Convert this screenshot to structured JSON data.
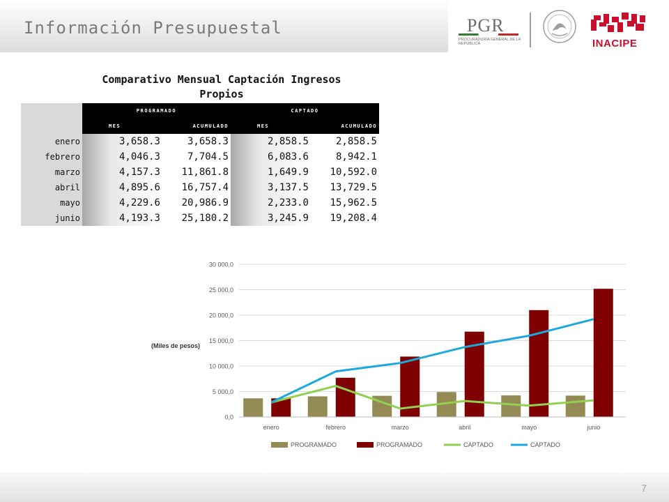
{
  "header": {
    "title": "Información Presupuestal"
  },
  "logos": {
    "pgr": "PGR",
    "pgr_subtitle": "PROCURADURÍA GENERAL DE LA REPÚBLICA",
    "inacipe": "INACIPE"
  },
  "table": {
    "title_line1": "Comparativo Mensual Captación Ingresos",
    "title_line2": "Propios",
    "group_headers": [
      "PROGRAMADO",
      "CAPTADO"
    ],
    "sub_headers": [
      "MES",
      "ACUMULADO",
      "MES",
      "ACUMULADO"
    ],
    "rows": [
      {
        "month": "enero",
        "prog_mes": "3,658.3",
        "prog_acum": "3,658.3",
        "capt_mes": "2,858.5",
        "capt_acum": "2,858.5"
      },
      {
        "month": "febrero",
        "prog_mes": "4,046.3",
        "prog_acum": "7,704.5",
        "capt_mes": "6,083.6",
        "capt_acum": "8,942.1"
      },
      {
        "month": "marzo",
        "prog_mes": "4,157.3",
        "prog_acum": "11,861.8",
        "capt_mes": "1,649.9",
        "capt_acum": "10,592.0"
      },
      {
        "month": "abril",
        "prog_mes": "4,895.6",
        "prog_acum": "16,757.4",
        "capt_mes": "3,137.5",
        "capt_acum": "13,729.5"
      },
      {
        "month": "mayo",
        "prog_mes": "4,229.6",
        "prog_acum": "20,986.9",
        "capt_mes": "2,233.0",
        "capt_acum": "15,962.5"
      },
      {
        "month": "junio",
        "prog_mes": "4,193.3",
        "prog_acum": "25,180.2",
        "capt_mes": "3,245.9",
        "capt_acum": "19,208.4"
      }
    ]
  },
  "colors": {
    "bar_programado_mes": "#948a54",
    "bar_programado_acum": "#7f0000",
    "line_captado_mes": "#92d050",
    "line_captado_acum": "#1ca8dd",
    "gridline": "#d9d9d9",
    "axis_text": "#595959"
  },
  "chart_data": {
    "type": "bar",
    "categories": [
      "enero",
      "febrero",
      "marzo",
      "abril",
      "mayo",
      "junio"
    ],
    "ylabel": "(Miles de pesos)",
    "ylim": [
      0,
      30000
    ],
    "ytick_labels": [
      "0,0",
      "5 000,0",
      "10 000,0",
      "15 000,0",
      "20 000,0",
      "25 000,0",
      "30 000,0"
    ],
    "grid": true,
    "legend_position": "bottom",
    "series": [
      {
        "name": "PROGRAMADO",
        "kind": "bar",
        "values": [
          3658.3,
          4046.3,
          4157.3,
          4895.6,
          4229.6,
          4193.3
        ]
      },
      {
        "name": "PROGRAMADO",
        "kind": "bar",
        "values": [
          3658.3,
          7704.5,
          11861.8,
          16757.4,
          20986.9,
          25180.2
        ]
      },
      {
        "name": "CAPTADO",
        "kind": "line",
        "values": [
          2858.5,
          6083.6,
          1649.9,
          3137.5,
          2233.0,
          3245.9
        ]
      },
      {
        "name": "CAPTADO",
        "kind": "line",
        "values": [
          2858.5,
          8942.1,
          10592.0,
          13729.5,
          15962.5,
          19208.4
        ]
      }
    ]
  },
  "footer": {
    "page_number": "7"
  }
}
